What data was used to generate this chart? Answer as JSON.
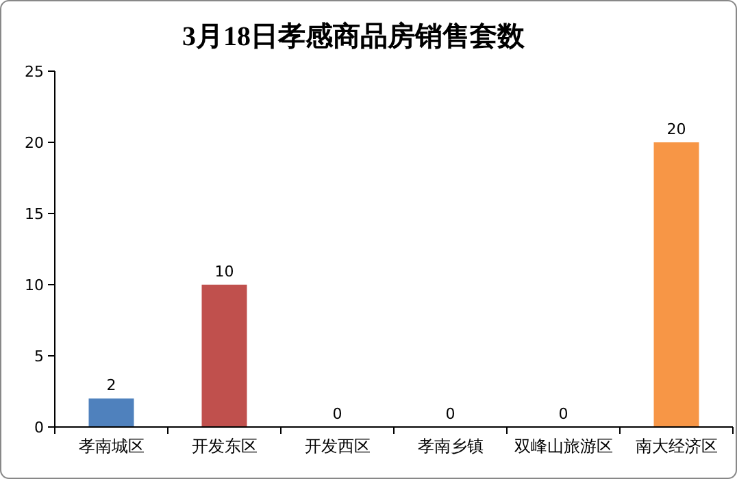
{
  "chart_data": {
    "type": "bar",
    "title": "3月18日孝感商品房销售套数",
    "categories": [
      "孝南城区",
      "开发东区",
      "开发西区",
      "孝南乡镇",
      "双峰山旅游区",
      "南大经济区"
    ],
    "values": [
      2,
      10,
      0,
      0,
      0,
      20
    ],
    "colors": [
      "#4f81bd",
      "#c0504d",
      "#9bbb59",
      "#8064a2",
      "#4bacc6",
      "#f79646"
    ],
    "ylim": [
      0,
      25
    ],
    "yticks": [
      0,
      5,
      10,
      15,
      20,
      25
    ],
    "grid": false,
    "data_labels": true
  }
}
